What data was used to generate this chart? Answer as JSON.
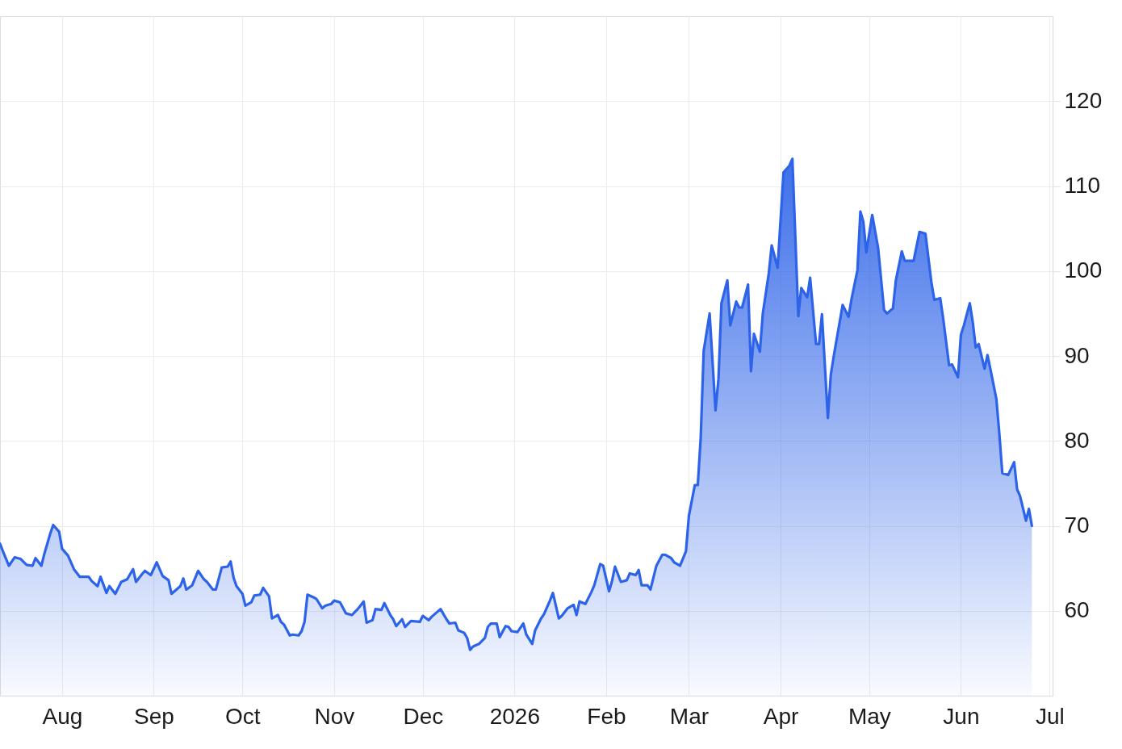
{
  "chart_data": {
    "type": "area",
    "x": [
      "2025-07-11",
      "2025-07-12",
      "2025-07-14",
      "2025-07-16",
      "2025-07-18",
      "2025-07-20",
      "2025-07-22",
      "2025-07-23",
      "2025-07-25",
      "2025-07-26",
      "2025-07-28",
      "2025-07-29",
      "2025-07-31",
      "2025-08-01",
      "2025-08-03",
      "2025-08-05",
      "2025-08-07",
      "2025-08-10",
      "2025-08-11",
      "2025-08-13",
      "2025-08-14",
      "2025-08-16",
      "2025-08-17",
      "2025-08-19",
      "2025-08-21",
      "2025-08-23",
      "2025-08-25",
      "2025-08-26",
      "2025-08-28",
      "2025-08-29",
      "2025-08-31",
      "2025-09-02",
      "2025-09-04",
      "2025-09-06",
      "2025-09-07",
      "2025-09-10",
      "2025-09-11",
      "2025-09-12",
      "2025-09-14",
      "2025-09-16",
      "2025-09-18",
      "2025-09-19",
      "2025-09-21",
      "2025-09-22",
      "2025-09-24",
      "2025-09-26",
      "2025-09-27",
      "2025-09-28",
      "2025-09-29",
      "2025-10-01",
      "2025-10-02",
      "2025-10-04",
      "2025-10-05",
      "2025-10-07",
      "2025-10-08",
      "2025-10-10",
      "2025-10-11",
      "2025-10-13",
      "2025-10-14",
      "2025-10-15",
      "2025-10-17",
      "2025-10-18",
      "2025-10-20",
      "2025-10-21",
      "2025-10-22",
      "2025-10-23",
      "2025-10-25",
      "2025-10-26",
      "2025-10-28",
      "2025-10-29",
      "2025-10-31",
      "2025-11-01",
      "2025-11-03",
      "2025-11-05",
      "2025-11-07",
      "2025-11-09",
      "2025-11-11",
      "2025-11-12",
      "2025-11-14",
      "2025-11-15",
      "2025-11-17",
      "2025-11-18",
      "2025-11-20",
      "2025-11-21",
      "2025-11-22",
      "2025-11-24",
      "2025-11-25",
      "2025-11-27",
      "2025-11-30",
      "2025-12-01",
      "2025-12-03",
      "2025-12-04",
      "2025-12-07",
      "2025-12-09",
      "2025-12-10",
      "2025-12-12",
      "2025-12-13",
      "2025-12-15",
      "2025-12-16",
      "2025-12-17",
      "2025-12-18",
      "2025-12-20",
      "2025-12-22",
      "2025-12-23",
      "2025-12-24",
      "2025-12-26",
      "2025-12-27",
      "2025-12-29",
      "2025-12-30",
      "2025-12-31",
      "2026-01-02",
      "2026-01-04",
      "2026-01-05",
      "2026-01-07",
      "2026-01-08",
      "2026-01-10",
      "2026-01-11",
      "2026-01-13",
      "2026-01-14",
      "2026-01-16",
      "2026-01-17",
      "2026-01-19",
      "2026-01-21",
      "2026-01-22",
      "2026-01-23",
      "2026-01-25",
      "2026-01-27",
      "2026-01-28",
      "2026-01-30",
      "2026-01-31",
      "2026-02-02",
      "2026-02-03",
      "2026-02-04",
      "2026-02-06",
      "2026-02-08",
      "2026-02-09",
      "2026-02-11",
      "2026-02-12",
      "2026-02-13",
      "2026-02-15",
      "2026-02-16",
      "2026-02-18",
      "2026-02-20",
      "2026-02-21",
      "2026-02-23",
      "2026-02-24",
      "2026-02-26",
      "2026-02-28",
      "2026-03-01",
      "2026-03-03",
      "2026-03-04",
      "2026-03-05",
      "2026-03-06",
      "2026-03-08",
      "2026-03-10",
      "2026-03-11",
      "2026-03-12",
      "2026-03-14",
      "2026-03-15",
      "2026-03-17",
      "2026-03-18",
      "2026-03-19",
      "2026-03-21",
      "2026-03-22",
      "2026-03-23",
      "2026-03-25",
      "2026-03-26",
      "2026-03-28",
      "2026-03-29",
      "2026-03-31",
      "2026-04-02",
      "2026-04-04",
      "2026-04-05",
      "2026-04-07",
      "2026-04-08",
      "2026-04-10",
      "2026-04-11",
      "2026-04-13",
      "2026-04-14",
      "2026-04-15",
      "2026-04-17",
      "2026-04-18",
      "2026-04-19",
      "2026-04-22",
      "2026-04-24",
      "2026-04-25",
      "2026-04-27",
      "2026-04-28",
      "2026-04-29",
      "2026-04-30",
      "2026-05-02",
      "2026-05-04",
      "2026-05-06",
      "2026-05-07",
      "2026-05-09",
      "2026-05-10",
      "2026-05-12",
      "2026-05-13",
      "2026-05-16",
      "2026-05-18",
      "2026-05-20",
      "2026-05-22",
      "2026-05-23",
      "2026-05-25",
      "2026-05-26",
      "2026-05-28",
      "2026-05-29",
      "2026-05-31",
      "2026-06-01",
      "2026-06-02",
      "2026-06-04",
      "2026-06-05",
      "2026-06-06",
      "2026-06-07",
      "2026-06-09",
      "2026-06-10",
      "2026-06-11",
      "2026-06-13",
      "2026-06-14",
      "2026-06-15",
      "2026-06-17",
      "2026-06-19",
      "2026-06-20",
      "2026-06-21",
      "2026-06-23",
      "2026-06-24",
      "2026-06-25"
    ],
    "series": [
      {
        "color": "#2d63e8",
        "values": [
          67.9,
          67.0,
          65.3,
          66.3,
          66.1,
          65.4,
          65.3,
          66.2,
          65.3,
          66.7,
          69.1,
          70.1,
          69.3,
          67.3,
          66.5,
          64.9,
          64.0,
          64.0,
          63.5,
          62.9,
          64.0,
          62.1,
          62.9,
          62.0,
          63.4,
          63.7,
          64.9,
          63.4,
          64.3,
          64.7,
          64.2,
          65.7,
          64.1,
          63.6,
          62.0,
          62.9,
          63.8,
          62.5,
          63.0,
          64.7,
          63.7,
          63.4,
          62.5,
          62.5,
          65.1,
          65.2,
          65.8,
          63.9,
          62.9,
          62.0,
          60.6,
          61.0,
          61.8,
          61.9,
          62.7,
          61.7,
          59.1,
          59.5,
          58.7,
          58.4,
          57.1,
          57.2,
          57.1,
          57.6,
          58.7,
          61.9,
          61.6,
          61.4,
          60.3,
          60.6,
          60.8,
          61.2,
          61.0,
          59.7,
          59.5,
          60.2,
          61.1,
          58.6,
          58.9,
          60.2,
          60.1,
          60.9,
          59.5,
          59.0,
          58.2,
          59.0,
          58.1,
          58.8,
          58.7,
          59.4,
          58.9,
          59.3,
          60.2,
          59.0,
          58.5,
          58.6,
          57.7,
          57.4,
          56.8,
          55.4,
          55.8,
          56.1,
          56.8,
          58.1,
          58.5,
          58.5,
          56.9,
          58.2,
          58.1,
          57.6,
          57.5,
          58.5,
          57.2,
          56.1,
          57.7,
          59.1,
          59.6,
          61.2,
          62.1,
          59.1,
          59.4,
          60.3,
          60.7,
          59.5,
          61.1,
          60.8,
          62.2,
          63.0,
          65.5,
          65.3,
          62.3,
          63.5,
          65.2,
          63.4,
          63.6,
          64.4,
          64.2,
          64.8,
          63.0,
          63.0,
          62.5,
          65.3,
          66.6,
          66.6,
          66.2,
          65.7,
          65.3,
          67.0,
          71.2,
          74.8,
          74.8,
          80.4,
          90.6,
          95.0,
          83.6,
          87.3,
          96.2,
          98.9,
          93.6,
          96.4,
          95.7,
          95.7,
          98.4,
          88.2,
          92.6,
          90.5,
          95.0,
          99.7,
          103.0,
          100.4,
          111.6,
          112.4,
          113.2,
          94.7,
          98.0,
          96.9,
          99.2,
          91.4,
          91.4,
          94.9,
          82.7,
          87.8,
          90.0,
          96.0,
          94.6,
          96.7,
          100.1,
          107.0,
          105.8,
          102.2,
          106.6,
          102.7,
          95.4,
          95.0,
          95.6,
          98.9,
          102.3,
          101.2,
          101.2,
          104.6,
          104.4,
          98.7,
          96.6,
          96.8,
          94.4,
          88.9,
          89.0,
          87.5,
          92.5,
          93.6,
          96.2,
          94.0,
          91.0,
          91.4,
          88.5,
          90.1,
          88.4,
          84.9,
          80.8,
          76.2,
          76.0,
          77.5,
          74.3,
          73.5,
          70.6,
          72.0,
          70.0
        ]
      }
    ],
    "xlim": [
      "2025-07-11",
      "2026-07-02"
    ],
    "xticks": [
      {
        "value": "2025-08-01",
        "label": "Aug"
      },
      {
        "value": "2025-09-01",
        "label": "Sep"
      },
      {
        "value": "2025-10-01",
        "label": "Oct"
      },
      {
        "value": "2025-11-01",
        "label": "Nov"
      },
      {
        "value": "2025-12-01",
        "label": "Dec"
      },
      {
        "value": "2026-01-01",
        "label": "2026"
      },
      {
        "value": "2026-02-01",
        "label": "Feb"
      },
      {
        "value": "2026-03-01",
        "label": "Mar"
      },
      {
        "value": "2026-04-01",
        "label": "Apr"
      },
      {
        "value": "2026-05-01",
        "label": "May"
      },
      {
        "value": "2026-06-01",
        "label": "Jun"
      },
      {
        "value": "2026-07-01",
        "label": "Jul"
      }
    ],
    "ylim": [
      50,
      130
    ],
    "yticks": [
      60,
      70,
      80,
      90,
      100,
      110,
      120
    ],
    "grid": true
  }
}
